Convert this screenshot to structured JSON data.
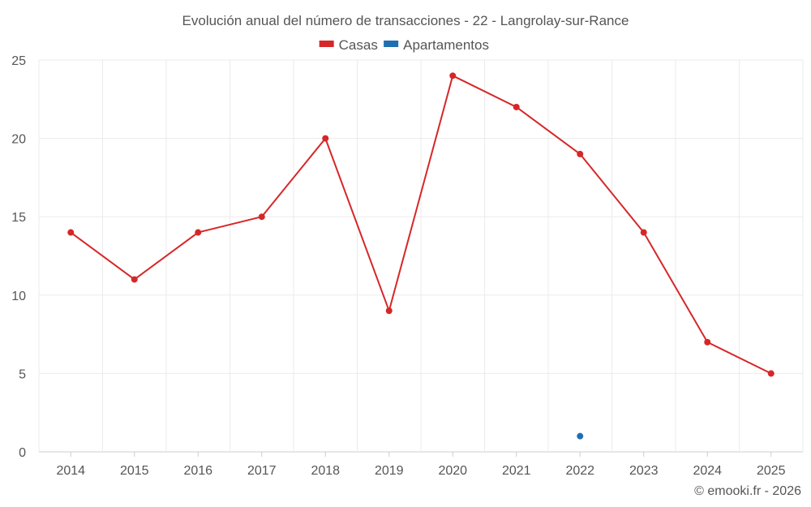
{
  "chart_data": {
    "type": "line",
    "title": "Evolución anual del número de transacciones - 22 - Langrolay-sur-Rance",
    "categories": [
      "2014",
      "2015",
      "2016",
      "2017",
      "2018",
      "2019",
      "2020",
      "2021",
      "2022",
      "2023",
      "2024",
      "2025"
    ],
    "series": [
      {
        "name": "Casas",
        "color": "#d62728",
        "values": [
          14,
          11,
          14,
          15,
          20,
          9,
          24,
          22,
          19,
          14,
          7,
          5
        ]
      },
      {
        "name": "Apartamentos",
        "color": "#1f6fb0",
        "values": [
          null,
          null,
          null,
          null,
          null,
          null,
          null,
          null,
          1,
          null,
          null,
          null
        ]
      }
    ],
    "ylim": [
      0,
      25
    ],
    "yticks": [
      0,
      5,
      10,
      15,
      20,
      25
    ],
    "xlabel": "",
    "ylabel": "",
    "grid": true,
    "legend": "top-center"
  },
  "credit": "© emooki.fr - 2026"
}
